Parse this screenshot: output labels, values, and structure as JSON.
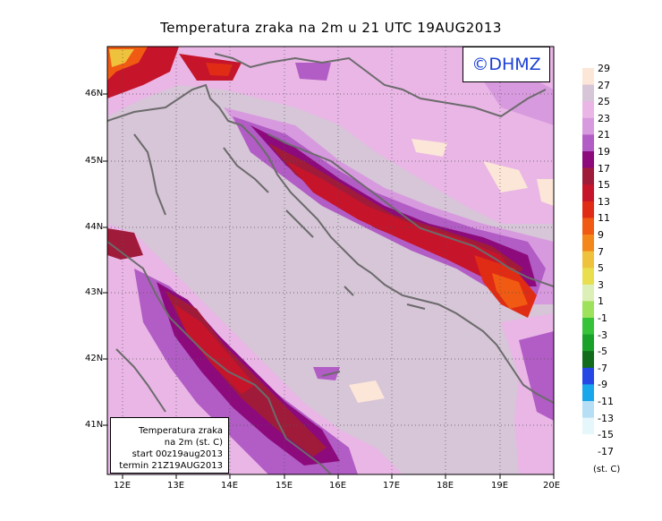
{
  "title": "Temperatura zraka na 2m u 21 UTC 19AUG2013",
  "logo": "©DHMZ",
  "info": {
    "line1": "Temperatura zraka",
    "line2": "na 2m (st. C)",
    "line3": "start 00z19aug2013",
    "line4": "termin 21Z19AUG2013"
  },
  "legend": {
    "unit": "(st. C)",
    "labels": [
      "29",
      "27",
      "25",
      "23",
      "21",
      "19",
      "17",
      "15",
      "13",
      "11",
      "9",
      "7",
      "5",
      "3",
      "1",
      "-1",
      "-3",
      "-5",
      "-7",
      "-9",
      "-11",
      "-13",
      "-15",
      "-17"
    ],
    "colors": [
      "#fce6d8",
      "#d7c5d8",
      "#e9b6e6",
      "#d89ade",
      "#b25cc5",
      "#8c0a7c",
      "#a01b3a",
      "#c6142b",
      "#e02c14",
      "#f05a12",
      "#f4871a",
      "#eec23d",
      "#e8de4e",
      "#dcefb7",
      "#9ee15a",
      "#36c33a",
      "#1aa12a",
      "#116c1c",
      "#2547e6",
      "#1aa6ea",
      "#b6dff5",
      "#e6f7fb",
      "#ffffff"
    ]
  },
  "lat_labels": [
    "46N",
    "45N",
    "44N",
    "43N",
    "42N",
    "41N"
  ],
  "lon_labels": [
    "12E",
    "13E",
    "14E",
    "15E",
    "16E",
    "17E",
    "18E",
    "19E",
    "20E"
  ],
  "icons": {
    "coastline": "coastline-icon",
    "grid": "graticule"
  }
}
